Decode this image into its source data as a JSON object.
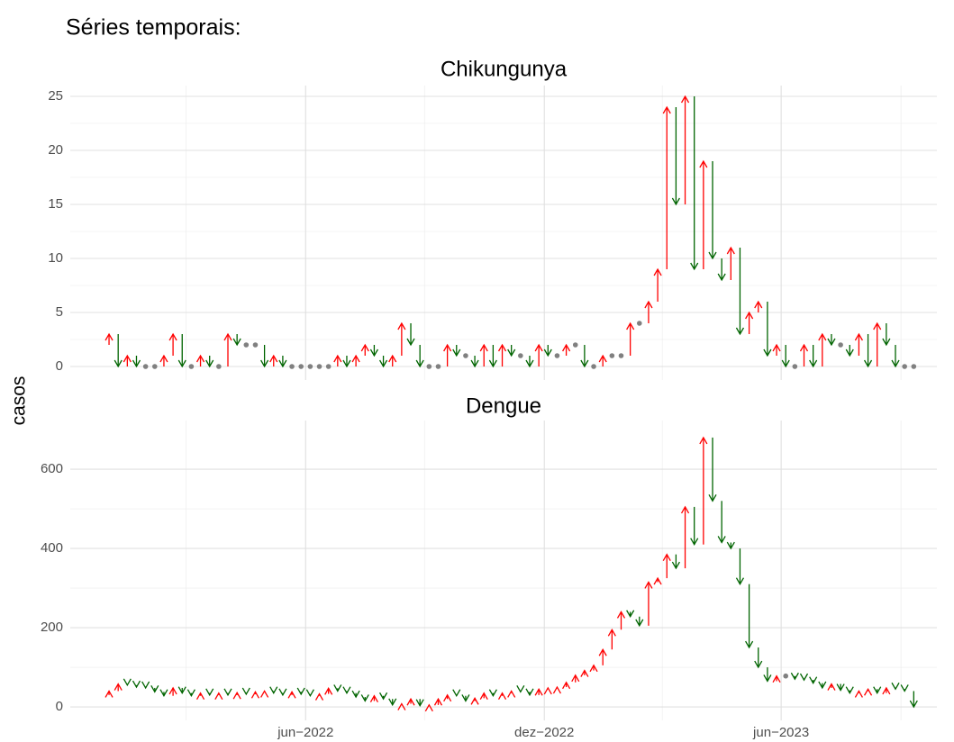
{
  "page_title": "Séries temporais:",
  "ylabel": "casos",
  "xaxis": {
    "xlim": [
      -4.24,
      90.53
    ],
    "xticks": [
      {
        "value": 21.5,
        "label": "jun−2022"
      },
      {
        "value": 47.6,
        "label": "dez−2022"
      },
      {
        "value": 73.5,
        "label": "jun−2023"
      }
    ],
    "xminorticks": [
      8.4,
      34.5,
      60.5,
      86.6
    ]
  },
  "colors": {
    "up": "#ff0000",
    "down": "#006400",
    "same": "#808080"
  },
  "chart_data": [
    {
      "type": "arrow",
      "title": "Chikungunya",
      "x": [
        0,
        1,
        2,
        3,
        4,
        5,
        6,
        7,
        8,
        9,
        10,
        11,
        12,
        13,
        14,
        15,
        16,
        17,
        18,
        19,
        20,
        21,
        22,
        23,
        24,
        25,
        26,
        27,
        28,
        29,
        30,
        31,
        32,
        33,
        34,
        35,
        36,
        37,
        38,
        39,
        40,
        41,
        42,
        43,
        44,
        45,
        46,
        47,
        48,
        49,
        50,
        51,
        52,
        53,
        54,
        55,
        56,
        57,
        58,
        59,
        60,
        61,
        62,
        63,
        64,
        65,
        66,
        67,
        68,
        69,
        70,
        71,
        72,
        73,
        74,
        75,
        76,
        77,
        78,
        79,
        80,
        81,
        82,
        83,
        84,
        85,
        86,
        87,
        88
      ],
      "start_value": 2,
      "values": [
        3,
        0,
        1,
        0,
        0,
        0,
        1,
        3,
        0,
        0,
        1,
        0,
        0,
        3,
        2,
        2,
        2,
        0,
        1,
        0,
        0,
        0,
        0,
        0,
        0,
        1,
        0,
        1,
        2,
        1,
        0,
        1,
        4,
        2,
        0,
        0,
        0,
        2,
        1,
        1,
        0,
        2,
        0,
        2,
        1,
        1,
        0,
        2,
        1,
        1,
        2,
        2,
        0,
        0,
        1,
        1,
        1,
        4,
        4,
        6,
        9,
        24,
        15,
        25,
        9,
        19,
        10,
        8,
        11,
        3,
        5,
        6,
        1,
        2,
        0,
        0,
        2,
        0,
        3,
        2,
        2,
        1,
        3,
        0,
        4,
        2,
        0,
        0,
        0
      ],
      "ylim": [
        -1.25,
        26
      ],
      "yticks": [
        0,
        5,
        10,
        15,
        20,
        25
      ],
      "yminorticks": [
        2.5,
        7.5,
        12.5,
        17.5,
        22.5
      ],
      "grid": true
    },
    {
      "type": "arrow",
      "title": "Dengue",
      "x": [
        0,
        1,
        2,
        3,
        4,
        5,
        6,
        7,
        8,
        9,
        10,
        11,
        12,
        13,
        14,
        15,
        16,
        17,
        18,
        19,
        20,
        21,
        22,
        23,
        24,
        25,
        26,
        27,
        28,
        29,
        30,
        31,
        32,
        33,
        34,
        35,
        36,
        37,
        38,
        39,
        40,
        41,
        42,
        43,
        44,
        45,
        46,
        47,
        48,
        49,
        50,
        51,
        52,
        53,
        54,
        55,
        56,
        57,
        58,
        59,
        60,
        61,
        62,
        63,
        64,
        65,
        66,
        67,
        68,
        69,
        70,
        71,
        72,
        73,
        74,
        75,
        76,
        77,
        78,
        79,
        80,
        81,
        82,
        83,
        84,
        85,
        86,
        87,
        88
      ],
      "start_value": 30,
      "values": [
        40,
        58,
        55,
        50,
        48,
        38,
        28,
        48,
        35,
        28,
        35,
        30,
        35,
        30,
        36,
        32,
        38,
        40,
        35,
        30,
        38,
        32,
        28,
        33,
        47,
        40,
        35,
        25,
        15,
        28,
        20,
        5,
        8,
        20,
        3,
        5,
        20,
        30,
        28,
        15,
        22,
        35,
        28,
        35,
        40,
        38,
        30,
        45,
        48,
        50,
        62,
        80,
        92,
        105,
        145,
        195,
        240,
        228,
        205,
        315,
        325,
        385,
        350,
        505,
        410,
        680,
        520,
        415,
        400,
        310,
        150,
        100,
        65,
        78,
        78,
        70,
        68,
        60,
        48,
        58,
        42,
        35,
        40,
        45,
        35,
        48,
        45,
        40,
        0
      ],
      "ylim": [
        -34,
        723
      ],
      "yticks": [
        0,
        200,
        400,
        600
      ],
      "yminorticks": [
        100,
        300,
        500
      ],
      "grid": true
    }
  ]
}
